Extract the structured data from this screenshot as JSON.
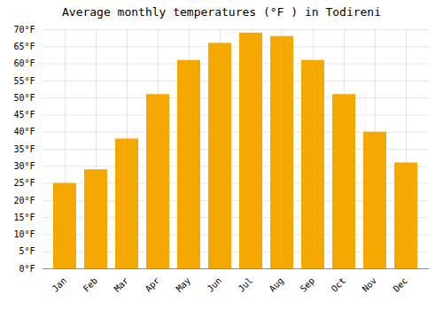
{
  "chart_data": {
    "type": "bar",
    "title": "Average monthly temperatures (°F ) in Todireni",
    "categories": [
      "Jan",
      "Feb",
      "Mar",
      "Apr",
      "May",
      "Jun",
      "Jul",
      "Aug",
      "Sep",
      "Oct",
      "Nov",
      "Dec"
    ],
    "values": [
      25,
      29,
      38,
      51,
      61,
      66,
      69,
      68,
      61,
      51,
      40,
      31
    ],
    "color": "#F5A800",
    "ylim": [
      0,
      70
    ],
    "yticks": [
      {
        "value": 0,
        "label": "0°F"
      },
      {
        "value": 5,
        "label": "5°F"
      },
      {
        "value": 10,
        "label": "10°F"
      },
      {
        "value": 15,
        "label": "15°F"
      },
      {
        "value": 20,
        "label": "20°F"
      },
      {
        "value": 25,
        "label": "25°F"
      },
      {
        "value": 30,
        "label": "30°F"
      },
      {
        "value": 35,
        "label": "35°F"
      },
      {
        "value": 40,
        "label": "40°F"
      },
      {
        "value": 45,
        "label": "45°F"
      },
      {
        "value": 50,
        "label": "50°F"
      },
      {
        "value": 55,
        "label": "55°F"
      },
      {
        "value": 60,
        "label": "60°F"
      },
      {
        "value": 65,
        "label": "65°F"
      },
      {
        "value": 70,
        "label": "70°F"
      }
    ],
    "grid": true
  }
}
